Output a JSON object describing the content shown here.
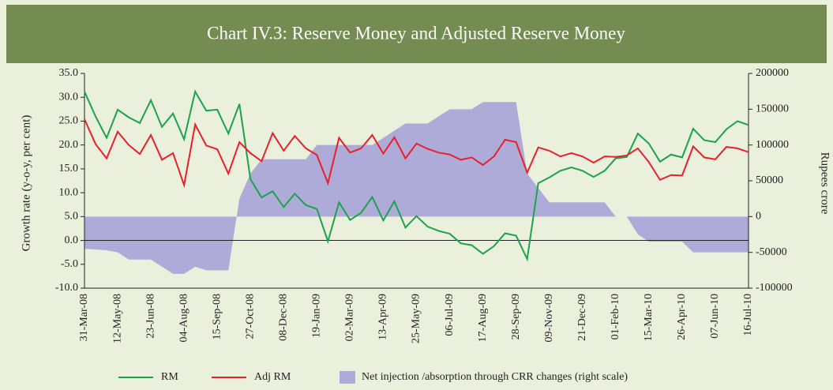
{
  "chart_data": {
    "type": "line",
    "title": "Chart IV.3: Reserve Money and Adjusted Reserve Money",
    "y_label": "Growth rate (y-o-y, per cent)",
    "y2_label": "Rupees crore",
    "categories": [
      "31-Mar-08",
      null,
      null,
      "12-May-08",
      null,
      null,
      "23-Jun-08",
      null,
      null,
      "04-Aug-08",
      null,
      null,
      "15-Sep-08",
      null,
      null,
      "27-Oct-08",
      null,
      null,
      "08-Dec-08",
      null,
      null,
      "19-Jan-09",
      null,
      null,
      "02-Mar-09",
      null,
      null,
      "13-Apr-09",
      null,
      null,
      "25-May-09",
      null,
      null,
      "06-Jul-09",
      null,
      null,
      "17-Aug-09",
      null,
      null,
      "28-Sep-09",
      null,
      null,
      "09-Nov-09",
      null,
      null,
      "21-Dec-09",
      null,
      null,
      "01-Feb-10",
      null,
      null,
      "15-Mar-10",
      null,
      null,
      "26-Apr-10",
      null,
      null,
      "07-Jun-10",
      null,
      null,
      "16-Jul-10"
    ],
    "series": [
      {
        "name": "RM",
        "color": "#1aa34a",
        "values": [
          31.2,
          26.0,
          21.5,
          27.4,
          25.8,
          24.6,
          29.4,
          23.8,
          26.6,
          21.2,
          31.2,
          27.2,
          27.4,
          22.4,
          28.6,
          12.8,
          9.0,
          10.3,
          7.0,
          9.8,
          7.4,
          6.6,
          -0.2,
          8.0,
          4.3,
          5.8,
          9.1,
          4.2,
          8.2,
          2.7,
          5.1,
          2.9,
          2.0,
          1.4,
          -0.6,
          -1.0,
          -2.8,
          -1.2,
          1.5,
          1.0,
          -3.9,
          12.0,
          13.2,
          14.6,
          15.3,
          14.6,
          13.3,
          14.6,
          17.2,
          17.5,
          22.4,
          20.3,
          16.5,
          18.0,
          17.4,
          23.4,
          21.0,
          20.6,
          23.3,
          25.0,
          24.2
        ]
      },
      {
        "name": "Adj RM",
        "color": "#e8202a",
        "values": [
          25.4,
          20.2,
          17.2,
          22.8,
          20.0,
          18.1,
          22.1,
          16.9,
          18.3,
          11.6,
          24.3,
          19.9,
          19.1,
          14.0,
          20.6,
          18.3,
          16.6,
          22.5,
          18.8,
          21.9,
          19.3,
          17.9,
          12.0,
          21.5,
          18.4,
          19.3,
          22.1,
          18.2,
          21.6,
          17.2,
          20.3,
          19.2,
          18.4,
          18.0,
          16.9,
          17.4,
          15.8,
          17.6,
          21.1,
          20.6,
          14.2,
          19.5,
          18.8,
          17.6,
          18.3,
          17.6,
          16.3,
          17.6,
          17.5,
          17.8,
          19.3,
          16.4,
          12.7,
          13.7,
          13.6,
          19.7,
          17.4,
          17.0,
          19.6,
          19.3,
          18.5
        ]
      },
      {
        "name": "Net injection /absorption through CRR changes (right scale)",
        "type": "area",
        "axis": "y2",
        "color": "#aeabd8",
        "values": [
          -45000,
          -46000,
          -47000,
          -50000,
          -60000,
          -60000,
          -60000,
          -70000,
          -80000,
          -80000,
          -70000,
          -75000,
          -75000,
          -75000,
          25000,
          60000,
          80000,
          80000,
          80000,
          80000,
          80000,
          100000,
          100000,
          100000,
          100000,
          100000,
          100000,
          110000,
          120000,
          130000,
          130000,
          130000,
          140000,
          150000,
          150000,
          150000,
          160000,
          160000,
          160000,
          160000,
          60000,
          40000,
          20000,
          20000,
          20000,
          20000,
          20000,
          20000,
          0,
          0,
          -25000,
          -35000,
          -35000,
          -35000,
          -35000,
          -50000,
          -50000,
          -50000,
          -50000,
          -50000,
          -50000
        ]
      }
    ],
    "ylim": [
      -10,
      35
    ],
    "yticks": [
      {
        "value": -10,
        "label": "-10.0"
      },
      {
        "value": -5,
        "label": "-5.0"
      },
      {
        "value": 0,
        "label": "0.0"
      },
      {
        "value": 5,
        "label": "5.0"
      },
      {
        "value": 10,
        "label": "10.0"
      },
      {
        "value": 15,
        "label": "15.0"
      },
      {
        "value": 20,
        "label": "20.0"
      },
      {
        "value": 25,
        "label": "25.0"
      },
      {
        "value": 30,
        "label": "30.0"
      },
      {
        "value": 35,
        "label": "35.0"
      }
    ],
    "y2lim": [
      -100000,
      200000
    ],
    "y2ticks": [
      -100000,
      -50000,
      0,
      50000,
      100000,
      150000,
      200000
    ],
    "grid": false
  }
}
